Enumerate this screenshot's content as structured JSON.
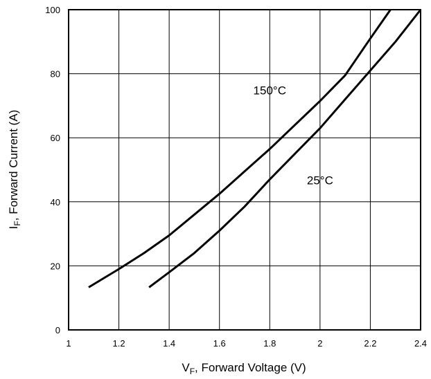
{
  "chart_data": {
    "type": "line",
    "xlabel": {
      "main": "V",
      "sub": "F",
      "rest": ", Forward Voltage (V)"
    },
    "ylabel": {
      "main": "I",
      "sub": "F",
      "rest": ", Forward Current (A)"
    },
    "xlim": [
      1,
      2.4
    ],
    "ylim": [
      0,
      100
    ],
    "xticks": [
      1,
      1.2,
      1.4,
      1.6,
      1.8,
      2,
      2.2,
      2.4
    ],
    "xtick_labels": [
      "1",
      "1.2",
      "1.4",
      "1.6",
      "1.8",
      "2",
      "2.2",
      "2.4"
    ],
    "yticks": [
      0,
      20,
      40,
      60,
      80,
      100
    ],
    "ytick_labels": [
      "0",
      "20",
      "40",
      "60",
      "80",
      "100"
    ],
    "grid": true,
    "series": [
      {
        "name": "150°C",
        "x": [
          1.08,
          1.2,
          1.3,
          1.4,
          1.5,
          1.6,
          1.7,
          1.8,
          1.9,
          2.0,
          2.1,
          2.2,
          2.28
        ],
        "y": [
          13.3,
          19.0,
          24.0,
          29.5,
          36.0,
          42.5,
          49.5,
          56.5,
          64.0,
          71.5,
          79.5,
          91.0,
          100
        ]
      },
      {
        "name": "25°C",
        "x": [
          1.32,
          1.4,
          1.5,
          1.6,
          1.7,
          1.8,
          1.9,
          2.0,
          2.1,
          2.2,
          2.3,
          2.4
        ],
        "y": [
          13.3,
          18.0,
          24.0,
          31.0,
          38.5,
          47.0,
          55.0,
          63.0,
          72.0,
          81.0,
          90.0,
          100
        ]
      }
    ],
    "annotations": [
      {
        "text": "150°C",
        "x": 1.8,
        "y": 73.5
      },
      {
        "text": "25°C",
        "x": 2.0,
        "y": 45.5
      }
    ]
  }
}
